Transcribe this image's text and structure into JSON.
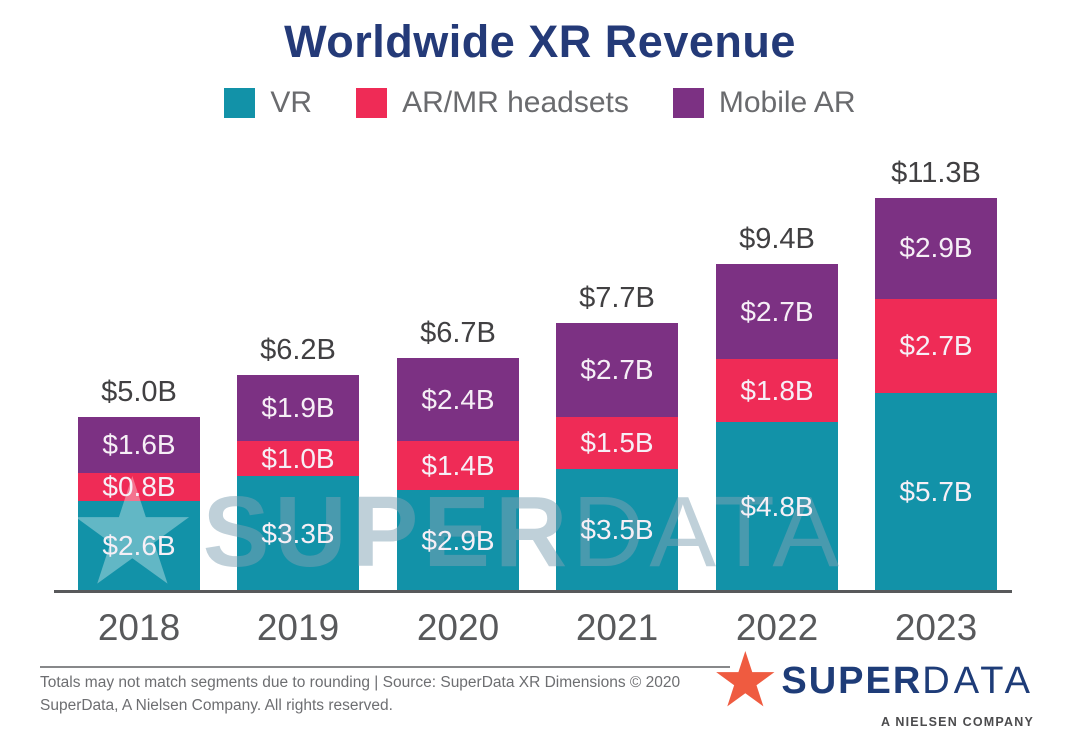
{
  "title": "Worldwide XR Revenue",
  "chart_data": {
    "type": "bar",
    "stacked": true,
    "title": "Worldwide XR Revenue",
    "unit": "USD billions",
    "categories": [
      "2018",
      "2019",
      "2020",
      "2021",
      "2022",
      "2023"
    ],
    "series": [
      {
        "name": "VR",
        "color": "#1292A8",
        "values": [
          2.6,
          3.3,
          2.9,
          3.5,
          4.8,
          5.7
        ]
      },
      {
        "name": "AR/MR headsets",
        "color": "#EF2B56",
        "values": [
          0.8,
          1.0,
          1.4,
          1.5,
          1.8,
          2.7
        ]
      },
      {
        "name": "Mobile AR",
        "color": "#7C3183",
        "values": [
          1.6,
          1.9,
          2.4,
          2.7,
          2.7,
          2.9
        ]
      }
    ],
    "totals": [
      5.0,
      6.2,
      6.7,
      7.7,
      9.4,
      11.3
    ],
    "total_labels": [
      "$5.0B",
      "$6.2B",
      "$6.7B",
      "$7.7B",
      "$9.4B",
      "$11.3B"
    ],
    "value_prefix": "$",
    "value_suffix": "B",
    "legend_position": "top",
    "grid": false,
    "ylim": [
      0,
      11.3
    ]
  },
  "watermark": {
    "star_glyph": "★",
    "text_bold": "SUPER",
    "text_light": "DATA"
  },
  "footer": {
    "note_line1": "Totals may not match segments due to rounding | Source: SuperData XR Dimensions © 2020",
    "note_line2": "SuperData, A Nielsen Company. All rights reserved.",
    "logo": {
      "star_glyph": "★",
      "bold": "SUPER",
      "light": "DATA",
      "tagline": "A NIELSEN COMPANY"
    }
  },
  "colors": {
    "title": "#243A78",
    "total_label": "#414042",
    "year_label": "#58595B",
    "legend_text": "#6A6B6E",
    "footer_text": "#6D6E71",
    "axis_line": "#58595B",
    "logo_navy": "#1E3C78",
    "logo_star": "#EF5B40"
  }
}
